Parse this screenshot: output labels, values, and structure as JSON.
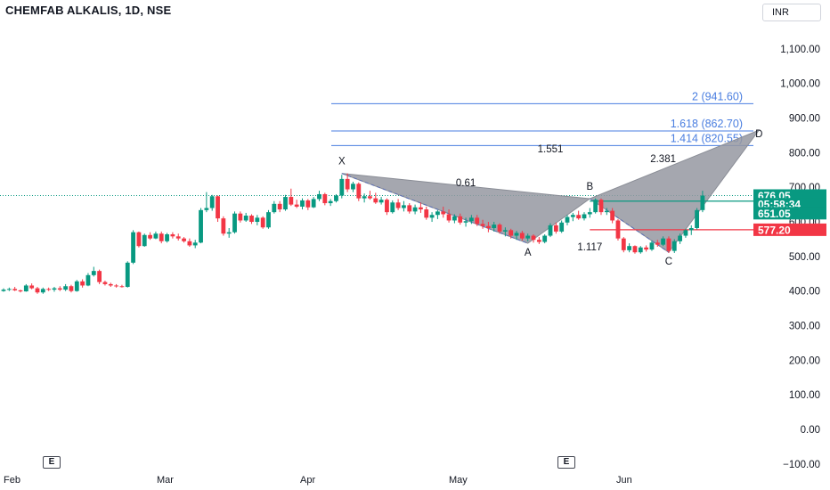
{
  "header": {
    "symbol_title": "CHEMFAB ALKALIS, 1D, NSE",
    "currency": "INR"
  },
  "colors": {
    "up": "#089981",
    "down": "#f23645",
    "pattern_fill": "#9598a1",
    "fib_line": "#4a7ee0",
    "current_price_line": "#089981"
  },
  "chart_data": {
    "type": "candlestick",
    "ylim": [
      -100,
      1150
    ],
    "y_ticks": [
      "−100.00",
      "0.00",
      "100.00",
      "200.00",
      "300.00",
      "400.00",
      "500.00",
      "600.00",
      "700.00",
      "800.00",
      "900.00",
      "1,000.00",
      "1,100.00"
    ],
    "y_tick_values": [
      -100,
      0,
      100,
      200,
      300,
      400,
      500,
      600,
      700,
      800,
      900,
      1000,
      1100
    ],
    "x_labels": [
      "Feb",
      "Mar",
      "Apr",
      "May",
      "Jun"
    ],
    "event_markers": [
      "E",
      "E"
    ],
    "candles": [
      [
        0,
        400,
        408,
        398,
        404
      ],
      [
        1,
        404,
        410,
        400,
        406
      ],
      [
        2,
        406,
        412,
        400,
        402
      ],
      [
        3,
        402,
        404,
        396,
        399
      ],
      [
        4,
        399,
        420,
        398,
        416
      ],
      [
        5,
        416,
        422,
        405,
        408
      ],
      [
        6,
        408,
        412,
        392,
        396
      ],
      [
        7,
        396,
        410,
        392,
        406
      ],
      [
        8,
        406,
        410,
        400,
        404
      ],
      [
        9,
        404,
        412,
        398,
        408
      ],
      [
        10,
        408,
        414,
        400,
        404
      ],
      [
        11,
        404,
        420,
        400,
        414
      ],
      [
        12,
        414,
        418,
        396,
        400
      ],
      [
        13,
        400,
        432,
        398,
        428
      ],
      [
        14,
        428,
        434,
        410,
        416
      ],
      [
        15,
        416,
        452,
        414,
        446
      ],
      [
        16,
        446,
        470,
        442,
        458
      ],
      [
        17,
        458,
        462,
        420,
        426
      ],
      [
        18,
        426,
        430,
        416,
        420
      ],
      [
        19,
        420,
        424,
        412,
        416
      ],
      [
        20,
        416,
        420,
        410,
        414
      ],
      [
        21,
        414,
        418,
        410,
        412
      ],
      [
        22,
        412,
        486,
        410,
        482
      ],
      [
        23,
        482,
        576,
        478,
        570
      ],
      [
        24,
        570,
        572,
        526,
        530
      ],
      [
        25,
        530,
        566,
        528,
        562
      ],
      [
        26,
        562,
        570,
        548,
        552
      ],
      [
        27,
        552,
        572,
        550,
        566
      ],
      [
        28,
        566,
        572,
        538,
        544
      ],
      [
        29,
        544,
        568,
        540,
        564
      ],
      [
        30,
        564,
        570,
        552,
        558
      ],
      [
        31,
        558,
        566,
        546,
        552
      ],
      [
        32,
        552,
        556,
        540,
        544
      ],
      [
        33,
        544,
        552,
        528,
        532
      ],
      [
        34,
        532,
        548,
        524,
        540
      ],
      [
        35,
        540,
        640,
        538,
        634
      ],
      [
        36,
        634,
        686,
        628,
        640
      ],
      [
        37,
        640,
        678,
        632,
        674
      ],
      [
        38,
        674,
        676,
        600,
        610
      ],
      [
        39,
        610,
        616,
        560,
        566
      ],
      [
        40,
        566,
        582,
        554,
        570
      ],
      [
        41,
        570,
        630,
        566,
        624
      ],
      [
        42,
        624,
        630,
        598,
        604
      ],
      [
        43,
        604,
        626,
        600,
        618
      ],
      [
        44,
        618,
        622,
        594,
        600
      ],
      [
        45,
        600,
        620,
        590,
        612
      ],
      [
        46,
        612,
        616,
        580,
        584
      ],
      [
        47,
        584,
        634,
        580,
        628
      ],
      [
        48,
        628,
        660,
        624,
        652
      ],
      [
        49,
        652,
        660,
        628,
        636
      ],
      [
        50,
        636,
        678,
        632,
        672
      ],
      [
        51,
        672,
        696,
        646,
        650
      ],
      [
        52,
        650,
        664,
        640,
        644
      ],
      [
        53,
        644,
        668,
        636,
        662
      ],
      [
        54,
        662,
        666,
        634,
        642
      ],
      [
        55,
        642,
        672,
        640,
        666
      ],
      [
        56,
        666,
        690,
        660,
        680
      ],
      [
        57,
        680,
        684,
        648,
        654
      ],
      [
        58,
        654,
        666,
        646,
        660
      ],
      [
        59,
        660,
        680,
        656,
        676
      ],
      [
        60,
        676,
        736,
        668,
        724
      ],
      [
        61,
        724,
        740,
        686,
        694
      ],
      [
        62,
        694,
        716,
        686,
        710
      ],
      [
        63,
        710,
        714,
        660,
        668
      ],
      [
        64,
        668,
        682,
        656,
        674
      ],
      [
        65,
        674,
        690,
        664,
        668
      ],
      [
        66,
        668,
        684,
        652,
        656
      ],
      [
        67,
        656,
        672,
        650,
        664
      ],
      [
        68,
        664,
        668,
        620,
        628
      ],
      [
        69,
        628,
        662,
        624,
        656
      ],
      [
        70,
        656,
        666,
        634,
        640
      ],
      [
        71,
        640,
        660,
        630,
        648
      ],
      [
        72,
        648,
        654,
        624,
        630
      ],
      [
        73,
        630,
        650,
        622,
        642
      ],
      [
        74,
        642,
        656,
        626,
        636
      ],
      [
        75,
        636,
        644,
        606,
        612
      ],
      [
        76,
        612,
        628,
        600,
        620
      ],
      [
        77,
        620,
        634,
        608,
        630
      ],
      [
        78,
        630,
        644,
        612,
        622
      ],
      [
        79,
        622,
        636,
        598,
        604
      ],
      [
        80,
        604,
        622,
        596,
        616
      ],
      [
        81,
        616,
        624,
        592,
        598
      ],
      [
        82,
        598,
        612,
        586,
        602
      ],
      [
        83,
        602,
        620,
        594,
        612
      ],
      [
        84,
        612,
        620,
        588,
        594
      ],
      [
        85,
        594,
        606,
        580,
        588
      ],
      [
        86,
        588,
        600,
        570,
        582
      ],
      [
        87,
        582,
        600,
        572,
        592
      ],
      [
        88,
        592,
        596,
        566,
        572
      ],
      [
        89,
        572,
        584,
        558,
        576
      ],
      [
        90,
        576,
        580,
        552,
        560
      ],
      [
        91,
        560,
        574,
        548,
        568
      ],
      [
        92,
        568,
        574,
        546,
        552
      ],
      [
        93,
        552,
        566,
        544,
        560
      ],
      [
        94,
        560,
        564,
        540,
        548
      ],
      [
        95,
        548,
        556,
        536,
        542
      ],
      [
        96,
        542,
        564,
        538,
        560
      ],
      [
        97,
        560,
        596,
        556,
        590
      ],
      [
        98,
        590,
        598,
        566,
        572
      ],
      [
        99,
        572,
        604,
        568,
        598
      ],
      [
        100,
        598,
        620,
        590,
        614
      ],
      [
        101,
        614,
        626,
        602,
        620
      ],
      [
        102,
        620,
        632,
        606,
        610
      ],
      [
        103,
        610,
        628,
        604,
        622
      ],
      [
        104,
        622,
        640,
        612,
        628
      ],
      [
        105,
        628,
        668,
        624,
        664
      ],
      [
        106,
        664,
        668,
        620,
        628
      ],
      [
        107,
        628,
        640,
        620,
        632
      ],
      [
        108,
        632,
        640,
        596,
        604
      ],
      [
        109,
        604,
        608,
        546,
        552
      ],
      [
        110,
        552,
        556,
        512,
        518
      ],
      [
        111,
        518,
        538,
        512,
        530
      ],
      [
        112,
        530,
        532,
        508,
        512
      ],
      [
        113,
        512,
        530,
        508,
        526
      ],
      [
        114,
        526,
        532,
        514,
        520
      ],
      [
        115,
        520,
        546,
        516,
        540
      ],
      [
        116,
        540,
        548,
        528,
        534
      ],
      [
        117,
        534,
        558,
        530,
        552
      ],
      [
        118,
        552,
        558,
        510,
        516
      ],
      [
        119,
        516,
        550,
        510,
        544
      ],
      [
        120,
        544,
        566,
        536,
        560
      ],
      [
        121,
        560,
        580,
        554,
        576
      ],
      [
        122,
        576,
        590,
        562,
        582
      ],
      [
        123,
        582,
        640,
        578,
        634
      ],
      [
        124,
        634,
        690,
        628,
        676
      ]
    ],
    "pattern": {
      "name": "bearish harmonic",
      "points": {
        "X": {
          "bar": 60,
          "price": 740,
          "label": "X"
        },
        "A": {
          "bar": 93,
          "price": 538,
          "label": "A"
        },
        "B": {
          "bar": 104,
          "price": 667,
          "label": "B"
        },
        "C": {
          "bar": 118,
          "price": 512,
          "label": "C"
        },
        "D": {
          "bar": 134,
          "price": 865,
          "label": "D"
        }
      },
      "ratios": [
        {
          "label": "0.61",
          "bar": 82,
          "price": 703
        },
        {
          "label": "1.551",
          "bar": 97,
          "price": 801
        },
        {
          "label": "1.117",
          "bar": 104,
          "price": 518
        },
        {
          "label": "2.381",
          "bar": 117,
          "price": 772
        }
      ]
    },
    "fib_levels": [
      {
        "label": "2 (941.60)",
        "price": 941.6
      },
      {
        "label": "1.618 (862.70)",
        "price": 862.7
      },
      {
        "label": "1.414 (820.55)",
        "price": 820.55
      }
    ],
    "horizontal_levels": [
      {
        "price": 660,
        "color": "#089981"
      },
      {
        "price": 577.2,
        "color": "#f23645"
      }
    ],
    "price_labels": [
      {
        "text": "676.05",
        "price": 676.05,
        "color": "#089981"
      },
      {
        "text": "05:58:34",
        "price": 651.05,
        "color": "#089981"
      },
      {
        "text": "651.05",
        "price": 625,
        "color": "#089981"
      },
      {
        "text": "577.20",
        "price": 577.2,
        "color": "#f23645"
      }
    ],
    "last_price": 676.05
  }
}
